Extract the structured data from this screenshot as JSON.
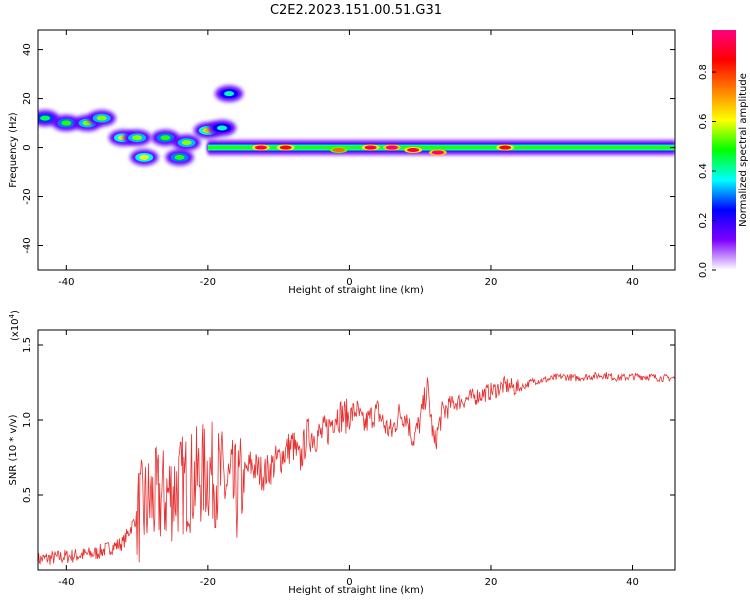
{
  "figure": {
    "title": "C2E2.2023.151.00.51.G31"
  },
  "chart_data": [
    {
      "type": "heatmap",
      "title": "C2E2.2023.151.00.51.G31",
      "xlabel": "Height of straight line (km)",
      "ylabel": "Frequency (Hz)",
      "xlim": [
        -44,
        46
      ],
      "ylim": [
        -50,
        48
      ],
      "xticks": [
        -40,
        -20,
        0,
        20,
        40
      ],
      "xtick_labels": [
        "-40",
        "-20",
        "0",
        "20",
        "40"
      ],
      "yticks": [
        -40,
        -20,
        0,
        20,
        40
      ],
      "ytick_labels": [
        "-40",
        "-20",
        "0",
        "20",
        "40"
      ],
      "colorbar": {
        "label": "Normalized spectral amplitude",
        "range": [
          0,
          0.97
        ],
        "ticks": [
          0.0,
          0.2,
          0.4,
          0.6,
          0.8
        ],
        "tick_labels": [
          "0.0",
          "0.2",
          "0.4",
          "0.6",
          "0.8"
        ],
        "colors": [
          "#ffffff",
          "#7d00ff",
          "#0000ff",
          "#00ffff",
          "#00ff00",
          "#ffff00",
          "#ff7f00",
          "#ff0000",
          "#ff007f"
        ]
      },
      "features": {
        "main_band": {
          "x_range": [
            -20,
            46
          ],
          "frequency_hz": 0,
          "typical_amplitude": 0.35
        },
        "peak_blobs": [
          {
            "x": -12.5,
            "y": 0,
            "amplitude": 0.9
          },
          {
            "x": -9,
            "y": 0,
            "amplitude": 0.85
          },
          {
            "x": -1.5,
            "y": -1,
            "amplitude": 0.75
          },
          {
            "x": 3,
            "y": 0,
            "amplitude": 0.9
          },
          {
            "x": 6,
            "y": 0,
            "amplitude": 0.95
          },
          {
            "x": 9,
            "y": -1,
            "amplitude": 0.9
          },
          {
            "x": 12.5,
            "y": -2,
            "amplitude": 0.95
          },
          {
            "x": 22,
            "y": 0,
            "amplitude": 0.85
          }
        ],
        "scattered_blobs": [
          {
            "x": -43,
            "y": 12,
            "amplitude": 0.45
          },
          {
            "x": -40,
            "y": 10,
            "amplitude": 0.5
          },
          {
            "x": -37,
            "y": 10,
            "amplitude": 0.55
          },
          {
            "x": -35,
            "y": 12,
            "amplitude": 0.55
          },
          {
            "x": -32,
            "y": 4,
            "amplitude": 0.6
          },
          {
            "x": -30,
            "y": 4,
            "amplitude": 0.55
          },
          {
            "x": -29,
            "y": -4,
            "amplitude": 0.6
          },
          {
            "x": -26,
            "y": 4,
            "amplitude": 0.5
          },
          {
            "x": -24,
            "y": -4,
            "amplitude": 0.5
          },
          {
            "x": -23,
            "y": 2,
            "amplitude": 0.55
          },
          {
            "x": -20,
            "y": 7,
            "amplitude": 0.65
          },
          {
            "x": -18,
            "y": 8,
            "amplitude": 0.4
          },
          {
            "x": -17,
            "y": 22,
            "amplitude": 0.4
          }
        ]
      }
    },
    {
      "type": "line",
      "xlabel": "Height of straight line (km)",
      "ylabel": "SNR (10 * v/v)",
      "y_multiplier_label": "(x10",
      "y_multiplier_exponent": "4",
      "y_multiplier_close": ")",
      "xlim": [
        -44,
        46
      ],
      "ylim": [
        0,
        16000
      ],
      "xticks": [
        -40,
        -20,
        0,
        20,
        40
      ],
      "xtick_labels": [
        "-40",
        "-20",
        "0",
        "20",
        "40"
      ],
      "yticks": [
        5000,
        10000,
        15000
      ],
      "ytick_labels": [
        "0.5",
        "1.0",
        "1.5"
      ],
      "line_color": "#e83030",
      "series": [
        {
          "x": [
            -44,
            -40,
            -36,
            -32,
            -30,
            -28,
            -26,
            -24,
            -22,
            -20,
            -18,
            -16,
            -15,
            -14,
            -12,
            -10,
            -8,
            -7,
            -6,
            -4,
            -3,
            -2,
            0,
            1,
            2,
            3,
            4,
            5,
            6,
            7,
            8,
            9,
            10,
            11,
            12,
            13,
            14,
            16,
            18,
            20,
            22,
            24,
            26,
            28,
            30,
            32,
            34,
            36,
            38,
            40,
            42,
            44,
            46
          ],
          "values": [
            700,
            900,
            1100,
            1800,
            3600,
            4600,
            4900,
            5600,
            6000,
            6600,
            6000,
            5000,
            6000,
            7000,
            6400,
            7400,
            8400,
            7200,
            9000,
            9000,
            9400,
            10400,
            10200,
            10700,
            9600,
            10200,
            10600,
            9600,
            9200,
            10400,
            10300,
            8700,
            9900,
            12200,
            8300,
            10300,
            11000,
            11300,
            11600,
            11900,
            12300,
            12100,
            12600,
            12700,
            12900,
            12800,
            12900,
            13000,
            12800,
            12900,
            12900,
            12800,
            12800
          ]
        }
      ]
    }
  ]
}
